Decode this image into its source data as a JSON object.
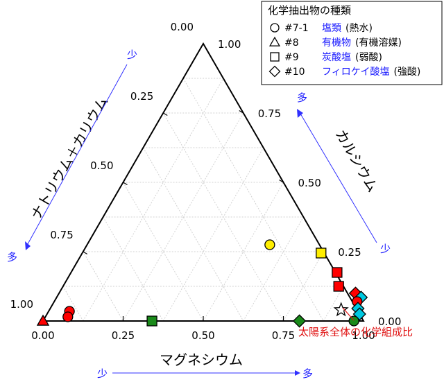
{
  "chart_data": {
    "type": "scatter",
    "subtype": "ternary",
    "axes": {
      "bottom": {
        "title": "マグネシウム",
        "ticks": [
          "0.00",
          "0.25",
          "0.50",
          "0.75",
          "1.00"
        ],
        "low_label": "少",
        "high_label": "多"
      },
      "right": {
        "title": "カルシウム",
        "ticks": [
          "0.00",
          "0.25",
          "0.50",
          "0.75",
          "1.00"
        ],
        "low_label": "少",
        "high_label": "多"
      },
      "left": {
        "title": "ナトリウム＋カリウム",
        "ticks": [
          "0.00",
          "0.25",
          "0.50",
          "0.75",
          "1.00"
        ],
        "low_label": "少",
        "high_label": "多"
      }
    },
    "grid": true,
    "legend": {
      "title": "化学抽出物の種類",
      "placement": "top-right",
      "entries": [
        {
          "code": "#7-1",
          "name": "塩類",
          "solvent": "(熱水)",
          "marker": "circle"
        },
        {
          "code": "#8",
          "name": "有機物",
          "solvent": "(有機溶媒)",
          "marker": "triangle"
        },
        {
          "code": "#9",
          "name": "炭酸塩",
          "solvent": "(弱酸)",
          "marker": "square"
        },
        {
          "code": "#10",
          "name": "フィロケイ酸塩",
          "solvent": "(強酸)",
          "marker": "diamond"
        }
      ]
    },
    "points": [
      {
        "marker": "triangle",
        "color": "#ff0000",
        "mg": 0.0,
        "ca": 0.0
      },
      {
        "marker": "circle",
        "color": "#ff0000",
        "mg": 0.065,
        "ca": 0.035
      },
      {
        "marker": "circle",
        "color": "#ff0000",
        "mg": 0.07,
        "ca": 0.015
      },
      {
        "marker": "square",
        "color": "#1a8a1a",
        "mg": 0.34,
        "ca": 0.0
      },
      {
        "marker": "circle",
        "color": "#ffee00",
        "mg": 0.57,
        "ca": 0.275
      },
      {
        "marker": "square",
        "color": "#ffee00",
        "mg": 0.745,
        "ca": 0.245
      },
      {
        "marker": "square",
        "color": "#ff0000",
        "mg": 0.83,
        "ca": 0.175
      },
      {
        "marker": "square",
        "color": "#ff0000",
        "mg": 0.86,
        "ca": 0.125
      },
      {
        "marker": "diamond",
        "color": "#1a8a1a",
        "mg": 0.8,
        "ca": 0.0
      },
      {
        "marker": "diamond",
        "color": "#ff0000",
        "mg": 0.925,
        "ca": 0.1
      },
      {
        "marker": "diamond",
        "color": "#00c8e0",
        "mg": 0.95,
        "ca": 0.085
      },
      {
        "marker": "circle",
        "color": "#ff0000",
        "mg": 0.945,
        "ca": 0.07
      },
      {
        "marker": "diamond",
        "color": "#00c8e0",
        "mg": 0.96,
        "ca": 0.045
      },
      {
        "marker": "diamond",
        "color": "#00c8e0",
        "mg": 0.975,
        "ca": 0.025
      },
      {
        "marker": "circle",
        "color": "#1a8a1a",
        "mg": 0.97,
        "ca": 0.0
      },
      {
        "marker": "star",
        "color": "#ffffff",
        "mg": 0.91,
        "ca": 0.04
      }
    ],
    "annotation": {
      "text": "太陽系全体の化学組成比",
      "color": "#e01010"
    }
  }
}
